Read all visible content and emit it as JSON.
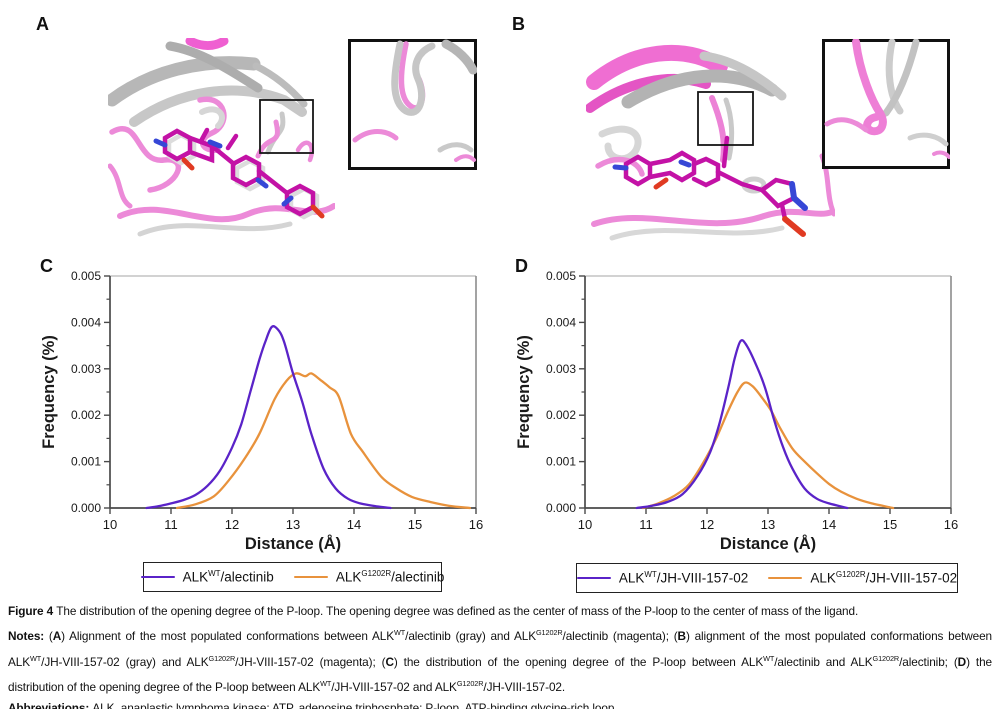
{
  "figure": {
    "panels": [
      {
        "label": "A"
      },
      {
        "label": "B"
      },
      {
        "label": "C"
      },
      {
        "label": "D"
      }
    ]
  },
  "colors": {
    "series_purple": "#5a23c8",
    "series_orange": "#e8923c",
    "ribbon_pink": "#ec8ad8",
    "ribbon_pink_bright": "#ef5fd1",
    "ribbon_gray": "#bdbdbd",
    "stick_magenta": "#c312a6",
    "nitrogen_blue": "#3647d6",
    "oxygen_red": "#e03a22",
    "axis_dark": "#4a4a4a",
    "frame_top": "#c4c4c4",
    "frame_right": "#8c8c8c"
  },
  "chart_data": [
    {
      "id": "C",
      "type": "line",
      "title": "",
      "xlabel": "Distance (Å)",
      "ylabel": "Frequency (%)",
      "xlim": [
        10,
        16
      ],
      "ylim": [
        0,
        0.005
      ],
      "grid": false,
      "legend_position": "below",
      "xtick_values": [
        10,
        11,
        12,
        13,
        14,
        15,
        16
      ],
      "xtick_labels": [
        "10",
        "11",
        "12",
        "13",
        "14",
        "15",
        "16"
      ],
      "ytick_values": [
        0,
        0.001,
        0.002,
        0.003,
        0.004,
        0.005
      ],
      "ytick_labels": [
        "0.000",
        "0.001",
        "0.002",
        "0.003",
        "0.004",
        "0.005"
      ],
      "y_minor_step": 0.0005,
      "series": [
        {
          "name": "ALKWT/alectinib",
          "label_pre": "ALK",
          "label_sup": "WT",
          "label_post": "/alectinib",
          "color": "#5a23c8",
          "peak_x": 12.65,
          "peak_y": 0.0039,
          "x": [
            10.6,
            10.8,
            11.0,
            11.2,
            11.4,
            11.6,
            11.8,
            12.0,
            12.15,
            12.3,
            12.45,
            12.55,
            12.65,
            12.75,
            12.85,
            13.0,
            13.15,
            13.3,
            13.5,
            13.7,
            13.9,
            14.1,
            14.35,
            14.6
          ],
          "y": [
            0,
            4e-05,
            0.0001,
            0.00017,
            0.00028,
            0.00048,
            0.0008,
            0.0013,
            0.0018,
            0.0025,
            0.0032,
            0.0036,
            0.0039,
            0.00385,
            0.0036,
            0.0029,
            0.0023,
            0.0016,
            0.00085,
            0.00042,
            0.0002,
            0.0001,
            4e-05,
            0
          ]
        },
        {
          "name": "ALKG1202R/alectinib",
          "label_pre": "ALK",
          "label_sup": "G1202R",
          "label_post": "/alectinib",
          "color": "#e8923c",
          "peak_x": 13.15,
          "peak_y": 0.0029,
          "x": [
            11.1,
            11.4,
            11.7,
            11.95,
            12.2,
            12.45,
            12.7,
            12.9,
            13.05,
            13.2,
            13.3,
            13.45,
            13.6,
            13.75,
            13.95,
            14.15,
            14.45,
            14.7,
            14.95,
            15.25,
            15.55,
            15.9
          ],
          "y": [
            0,
            8e-05,
            0.00025,
            0.0006,
            0.00105,
            0.0016,
            0.00235,
            0.00275,
            0.0029,
            0.00284,
            0.0029,
            0.00276,
            0.0026,
            0.0024,
            0.0016,
            0.0012,
            0.00067,
            0.00042,
            0.00024,
            0.00013,
            5e-05,
            0
          ]
        }
      ]
    },
    {
      "id": "D",
      "type": "line",
      "title": "",
      "xlabel": "Distance (Å)",
      "ylabel": "Frequency (%)",
      "xlim": [
        10,
        16
      ],
      "ylim": [
        0,
        0.005
      ],
      "grid": false,
      "legend_position": "below",
      "xtick_values": [
        10,
        11,
        12,
        13,
        14,
        15,
        16
      ],
      "xtick_labels": [
        "10",
        "11",
        "12",
        "13",
        "14",
        "15",
        "16"
      ],
      "ytick_values": [
        0,
        0.001,
        0.002,
        0.003,
        0.004,
        0.005
      ],
      "ytick_labels": [
        "0.000",
        "0.001",
        "0.002",
        "0.003",
        "0.004",
        "0.005"
      ],
      "y_minor_step": 0.0005,
      "series": [
        {
          "name": "ALKWT/JH-VIII-157-02",
          "label_pre": "ALK",
          "label_sup": "WT",
          "label_post": "/JH-VIII-157-02",
          "color": "#5a23c8",
          "peak_x": 12.55,
          "peak_y": 0.0036,
          "x": [
            10.85,
            11.1,
            11.35,
            11.6,
            11.85,
            12.05,
            12.2,
            12.35,
            12.45,
            12.55,
            12.65,
            12.8,
            12.95,
            13.1,
            13.25,
            13.4,
            13.6,
            13.8,
            14.0,
            14.3
          ],
          "y": [
            0,
            5e-05,
            0.00013,
            0.0003,
            0.0007,
            0.0012,
            0.0018,
            0.0026,
            0.0032,
            0.0036,
            0.0035,
            0.0031,
            0.0026,
            0.0019,
            0.0013,
            0.00085,
            0.00042,
            0.0002,
            0.0001,
            0
          ]
        },
        {
          "name": "ALKG1202R/JH-VIII-157-02",
          "label_pre": "ALK",
          "label_sup": "G1202R",
          "label_post": "/JH-VIII-157-02",
          "color": "#e8923c",
          "peak_x": 12.6,
          "peak_y": 0.0027,
          "x": [
            10.95,
            11.2,
            11.45,
            11.7,
            11.95,
            12.15,
            12.35,
            12.5,
            12.62,
            12.75,
            12.9,
            13.05,
            13.2,
            13.4,
            13.6,
            13.8,
            14.0,
            14.2,
            14.45,
            14.7,
            15.05
          ],
          "y": [
            0,
            0.0001,
            0.00025,
            0.0005,
            0.001,
            0.0015,
            0.0021,
            0.0025,
            0.0027,
            0.00262,
            0.00238,
            0.0021,
            0.00172,
            0.00128,
            0.001,
            0.00075,
            0.00052,
            0.00035,
            0.0002,
            0.0001,
            0
          ]
        }
      ]
    }
  ],
  "caption": {
    "paragraphs": {
      "title_line": [
        {
          "t": "Figure 4 ",
          "b": true
        },
        {
          "t": "The distribution of the opening degree of the P-loop. The opening degree was defined as the center of mass of the P-loop to the center of mass of the ligand."
        }
      ],
      "notes": [
        {
          "t": "Notes: ",
          "b": true
        },
        {
          "t": "("
        },
        {
          "t": "A",
          "b": true
        },
        {
          "t": ") Alignment of the most populated conformations between ALK"
        },
        {
          "t": "WT",
          "sup": true
        },
        {
          "t": "/alectinib (gray) and ALK"
        },
        {
          "t": "G1202R",
          "sup": true
        },
        {
          "t": "/alectinib (magenta); ("
        },
        {
          "t": "B",
          "b": true
        },
        {
          "t": ") alignment of the most populated conformations between ALK"
        },
        {
          "t": "WT",
          "sup": true
        },
        {
          "t": "/JH-VIII-157-02 (gray) and ALK"
        },
        {
          "t": "G1202R",
          "sup": true
        },
        {
          "t": "/JH-VIII-157-02 (magenta); ("
        },
        {
          "t": "C",
          "b": true
        },
        {
          "t": ") the distribution of the opening degree of the P-loop between ALK"
        },
        {
          "t": "WT",
          "sup": true
        },
        {
          "t": "/alectinib and ALK"
        },
        {
          "t": "G1202R",
          "sup": true
        },
        {
          "t": "/alectinib; ("
        },
        {
          "t": "D",
          "b": true
        },
        {
          "t": ") the distribution of the opening degree of the P-loop between ALK"
        },
        {
          "t": "WT",
          "sup": true
        },
        {
          "t": "/JH-VIII-157-02 and ALK"
        },
        {
          "t": "G1202R",
          "sup": true
        },
        {
          "t": "/JH-VIII-157-02."
        }
      ],
      "abbreviations": [
        {
          "t": "Abbreviations: ",
          "b": true
        },
        {
          "t": "ALK, anaplastic lymphoma kinase; ATP, adenosine triphosphate; P-loop, ATP-binding glycine-rich loop."
        }
      ]
    }
  }
}
